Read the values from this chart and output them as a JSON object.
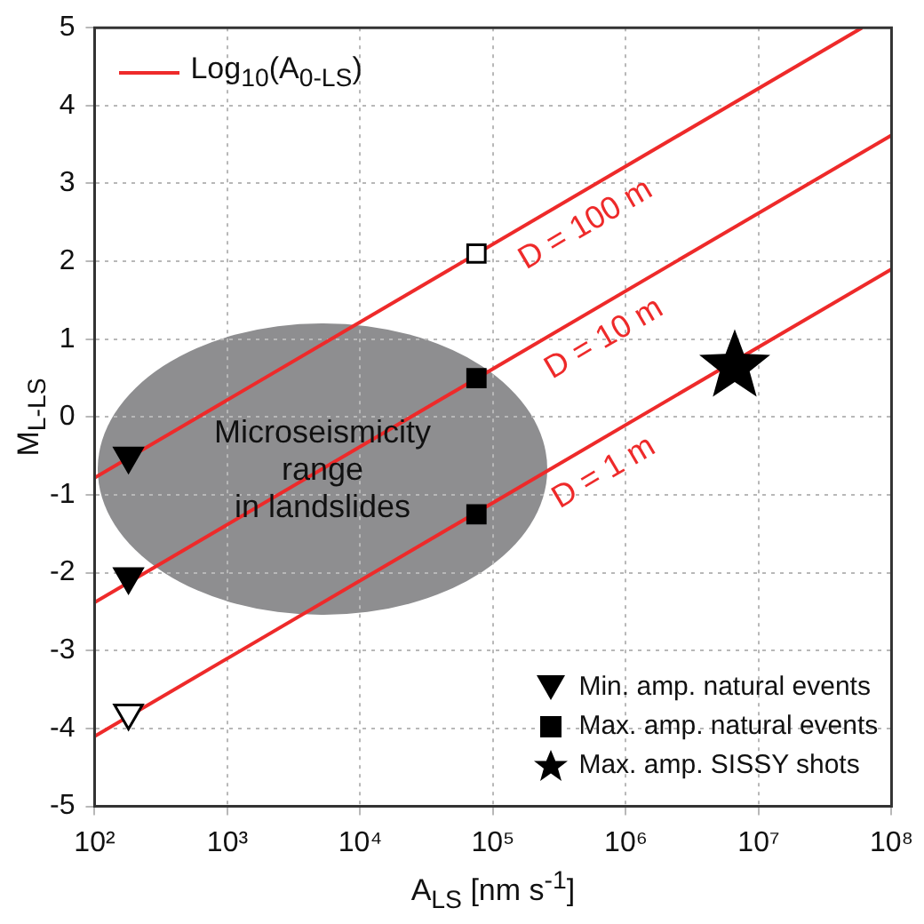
{
  "chart_data": {
    "type": "scatter",
    "xlabel": "A$_{LS}$ [nm s$^{-1}$]",
    "ylabel": "M$_{L-LS}$",
    "legend_title": "Log$_{10}$(A$_{0-LS}$)",
    "annotations": [
      "Microseismicity\nrange\nin landslides"
    ],
    "log": "x",
    "grid": true,
    "legend": "bottom right",
    "xlim": [
      100,
      100000000
    ],
    "xticks": [
      {
        "value": 100,
        "label": "10²"
      },
      {
        "value": 1000,
        "label": "10³"
      },
      {
        "value": 10000,
        "label": "10⁴"
      },
      {
        "value": 100000,
        "label": "10⁵"
      },
      {
        "value": 1000000,
        "label": "10⁶"
      },
      {
        "value": 10000000,
        "label": "10⁷"
      },
      {
        "value": 100000000,
        "label": "10⁸"
      }
    ],
    "ylim": [
      -5,
      5
    ],
    "yticks": [
      -5,
      -4,
      -3,
      -2,
      -1,
      0,
      1,
      2,
      3,
      4,
      5
    ],
    "series": [
      {
        "name": "D = 100 m",
        "type": "line",
        "color": "#ee2a2a",
        "x": [
          100,
          60000000
        ],
        "values": [
          -0.78,
          5
        ]
      },
      {
        "name": "D = 10 m",
        "type": "line",
        "color": "#ee2a2a",
        "x": [
          100,
          100000000
        ],
        "values": [
          -2.38,
          3.62
        ]
      },
      {
        "name": "D = 1 m",
        "type": "line",
        "color": "#ee2a2a",
        "x": [
          100,
          100000000
        ],
        "values": [
          -4.1,
          1.9
        ]
      },
      {
        "name": "Min. amp. natural events",
        "type": "scatter",
        "marker": "triangle",
        "color": "#000000",
        "x": [
          180,
          180
        ],
        "values": [
          -0.5,
          -2.05
        ]
      },
      {
        "type": "scatter",
        "marker": "triangle",
        "color": "#000000",
        "x": [
          180
        ],
        "values": [
          -3.8
        ]
      },
      {
        "name": "Max. amp. natural events",
        "type": "scatter",
        "marker": "square",
        "color": "#000000",
        "x": [
          75000,
          75000
        ],
        "values": [
          0.5,
          -1.25
        ]
      },
      {
        "type": "scatter",
        "marker": "square",
        "color": "#000000",
        "x": [
          75000
        ],
        "values": [
          2.1
        ]
      },
      {
        "name": "Max. amp. SISSY shots",
        "type": "scatter",
        "marker": "star",
        "color": "#000000",
        "x": [
          6600000
        ],
        "values": [
          0.65
        ]
      }
    ]
  }
}
